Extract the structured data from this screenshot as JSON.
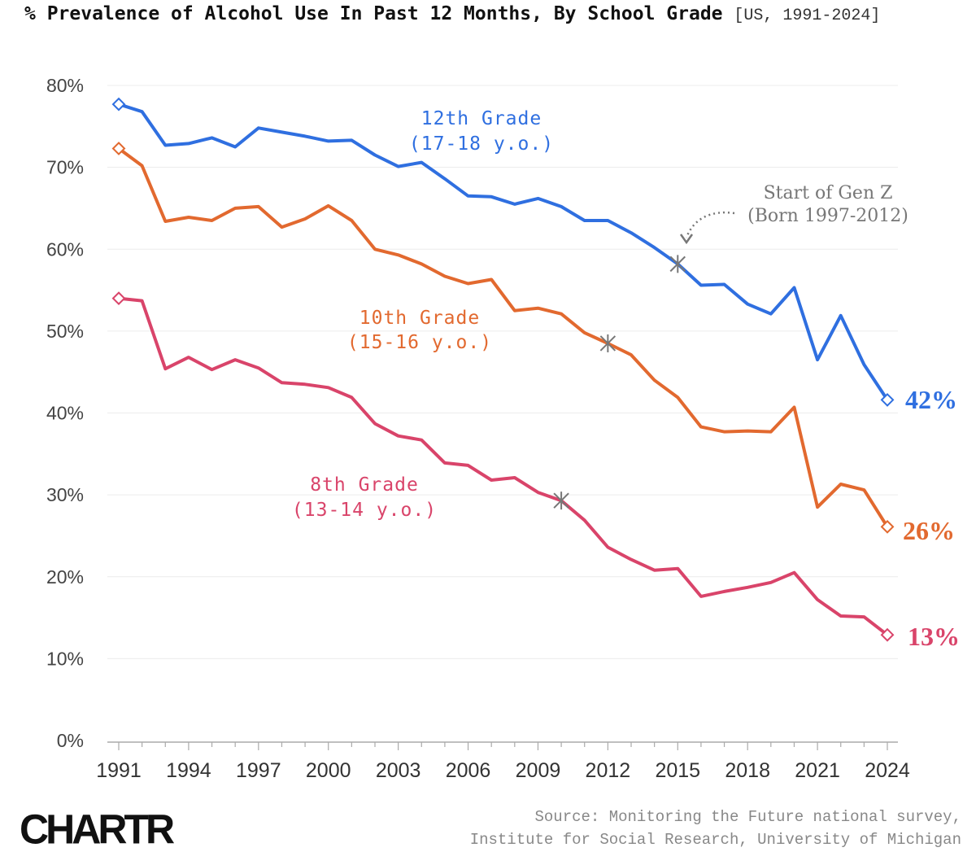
{
  "title": {
    "main": "% Prevalence of Alcohol Use In Past 12 Months, By School Grade",
    "sub": "[US, 1991-2024]"
  },
  "logo": "CHARTR",
  "source": {
    "line1": "Source: Monitoring the Future national survey,",
    "line2": "Institute for Social Research, University of Michigan"
  },
  "annotation": {
    "line1": "Start of Gen Z",
    "line2": "(Born 1997-2012)"
  },
  "chart_data": {
    "type": "line",
    "xlim": [
      1991,
      2024
    ],
    "ylim": [
      0,
      80
    ],
    "x_ticks": [
      "1991",
      "1994",
      "1997",
      "2000",
      "2003",
      "2006",
      "2009",
      "2012",
      "2015",
      "2018",
      "2021",
      "2024"
    ],
    "y_ticks": [
      "0%",
      "10%",
      "20%",
      "30%",
      "40%",
      "50%",
      "60%",
      "70%",
      "80%"
    ],
    "grid": "horizontal",
    "x": [
      1991,
      1992,
      1993,
      1994,
      1995,
      1996,
      1997,
      1998,
      1999,
      2000,
      2001,
      2002,
      2003,
      2004,
      2005,
      2006,
      2007,
      2008,
      2009,
      2010,
      2011,
      2012,
      2013,
      2014,
      2015,
      2016,
      2017,
      2018,
      2019,
      2020,
      2021,
      2022,
      2023,
      2024
    ],
    "series": [
      {
        "name": "12th Grade",
        "label_line1": "12th Grade",
        "label_line2": "(17-18 y.o.)",
        "end_label": "42%",
        "color": "#2f6fe0",
        "gen_z_marker": 2015,
        "values": [
          77.7,
          76.8,
          72.7,
          72.9,
          73.6,
          72.5,
          74.8,
          74.3,
          73.8,
          73.2,
          73.3,
          71.5,
          70.1,
          70.6,
          68.6,
          66.5,
          66.4,
          65.5,
          66.2,
          65.2,
          63.5,
          63.5,
          62.0,
          60.2,
          58.2,
          55.6,
          55.7,
          53.3,
          52.1,
          55.3,
          46.5,
          51.9,
          45.9,
          41.6
        ]
      },
      {
        "name": "10th Grade",
        "label_line1": "10th Grade",
        "label_line2": "(15-16 y.o.)",
        "end_label": "26%",
        "color": "#e2692f",
        "gen_z_marker": 2012,
        "values": [
          72.3,
          70.2,
          63.4,
          63.9,
          63.5,
          65.0,
          65.2,
          62.7,
          63.7,
          65.3,
          63.5,
          60.0,
          59.3,
          58.2,
          56.7,
          55.8,
          56.3,
          52.5,
          52.8,
          52.1,
          49.8,
          48.5,
          47.1,
          44.0,
          41.9,
          38.3,
          37.7,
          37.8,
          37.7,
          40.7,
          28.5,
          31.3,
          30.6,
          26.1
        ]
      },
      {
        "name": "8th Grade",
        "label_line1": "8th Grade",
        "label_line2": "(13-14 y.o.)",
        "end_label": "13%",
        "color": "#d9446a",
        "gen_z_marker": 2010,
        "values": [
          54.0,
          53.7,
          45.4,
          46.8,
          45.3,
          46.5,
          45.5,
          43.7,
          43.5,
          43.1,
          41.9,
          38.7,
          37.2,
          36.7,
          33.9,
          33.6,
          31.8,
          32.1,
          30.3,
          29.3,
          26.9,
          23.6,
          22.1,
          20.8,
          21.0,
          17.6,
          18.2,
          18.7,
          19.3,
          20.5,
          17.2,
          15.2,
          15.1,
          12.9
        ]
      }
    ]
  }
}
